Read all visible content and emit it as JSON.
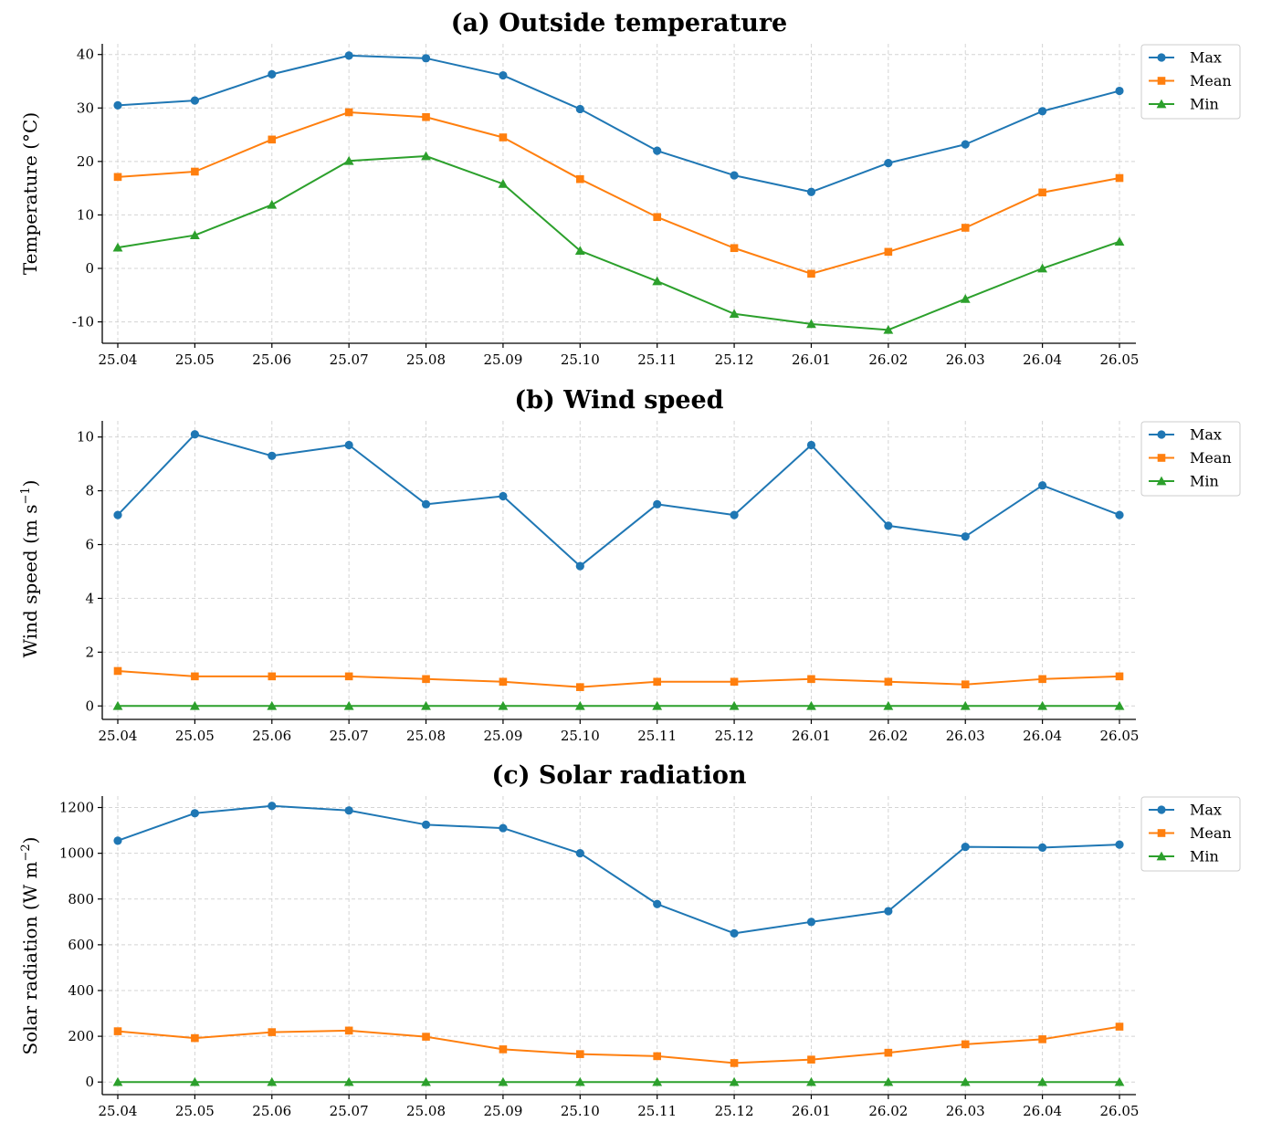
{
  "chart_data": [
    {
      "type": "line",
      "title": "(a) Outside temperature",
      "ylabel": "Temperature (°C)",
      "ylabel_sup": "",
      "ylabel_tail": "",
      "categories": [
        "25.04",
        "25.05",
        "25.06",
        "25.07",
        "25.08",
        "25.09",
        "25.10",
        "25.11",
        "25.12",
        "26.01",
        "26.02",
        "26.03",
        "26.04",
        "26.05"
      ],
      "ylim": [
        -14,
        42
      ],
      "yticks": [
        -10,
        0,
        10,
        20,
        30,
        40
      ],
      "grid": true,
      "legend": "upper-right-outside",
      "series": [
        {
          "name": "Max",
          "marker": "circle",
          "color": "#1f77b4",
          "values": [
            30.5,
            31.4,
            36.3,
            39.8,
            39.3,
            36.1,
            29.8,
            22.0,
            17.4,
            14.3,
            19.7,
            23.2,
            29.4,
            33.2
          ]
        },
        {
          "name": "Mean",
          "marker": "square",
          "color": "#ff7f0e",
          "values": [
            17.1,
            18.1,
            24.1,
            29.2,
            28.3,
            24.5,
            16.7,
            9.6,
            3.8,
            -1.0,
            3.1,
            7.6,
            14.2,
            16.9
          ]
        },
        {
          "name": "Min",
          "marker": "triangle",
          "color": "#2ca02c",
          "values": [
            3.9,
            6.2,
            11.9,
            20.1,
            21.0,
            15.8,
            3.3,
            -2.4,
            -8.5,
            -10.4,
            -11.5,
            -5.7,
            0.0,
            5.0
          ]
        }
      ]
    },
    {
      "type": "line",
      "title": "(b) Wind speed",
      "ylabel": "Wind speed (m s",
      "ylabel_sup": "−1",
      "ylabel_tail": ")",
      "categories": [
        "25.04",
        "25.05",
        "25.06",
        "25.07",
        "25.08",
        "25.09",
        "25.10",
        "25.11",
        "25.12",
        "26.01",
        "26.02",
        "26.03",
        "26.04",
        "26.05"
      ],
      "ylim": [
        -0.5,
        10.6
      ],
      "yticks": [
        0,
        2,
        4,
        6,
        8,
        10
      ],
      "grid": true,
      "legend": "upper-right-outside",
      "series": [
        {
          "name": "Max",
          "marker": "circle",
          "color": "#1f77b4",
          "values": [
            7.1,
            10.1,
            9.3,
            9.7,
            7.5,
            7.8,
            5.2,
            7.5,
            7.1,
            9.7,
            6.7,
            6.3,
            8.2,
            7.1
          ]
        },
        {
          "name": "Mean",
          "marker": "square",
          "color": "#ff7f0e",
          "values": [
            1.3,
            1.1,
            1.1,
            1.1,
            1.0,
            0.9,
            0.7,
            0.9,
            0.9,
            1.0,
            0.9,
            0.8,
            1.0,
            1.1
          ]
        },
        {
          "name": "Min",
          "marker": "triangle",
          "color": "#2ca02c",
          "values": [
            0,
            0,
            0,
            0,
            0,
            0,
            0,
            0,
            0,
            0,
            0,
            0,
            0,
            0
          ]
        }
      ]
    },
    {
      "type": "line",
      "title": "(c) Solar radiation",
      "ylabel": "Solar radiation (W m",
      "ylabel_sup": "−2",
      "ylabel_tail": ")",
      "categories": [
        "25.04",
        "25.05",
        "25.06",
        "25.07",
        "25.08",
        "25.09",
        "25.10",
        "25.11",
        "25.12",
        "26.01",
        "26.02",
        "26.03",
        "26.04",
        "26.05"
      ],
      "ylim": [
        -55,
        1250
      ],
      "yticks": [
        0,
        200,
        400,
        600,
        800,
        1000,
        1200
      ],
      "grid": true,
      "legend": "upper-right-outside",
      "series": [
        {
          "name": "Max",
          "marker": "circle",
          "color": "#1f77b4",
          "values": [
            1055,
            1175,
            1207,
            1187,
            1125,
            1110,
            1000,
            778,
            650,
            700,
            747,
            1028,
            1025,
            1038
          ]
        },
        {
          "name": "Mean",
          "marker": "square",
          "color": "#ff7f0e",
          "values": [
            222,
            192,
            218,
            225,
            198,
            143,
            122,
            113,
            83,
            98,
            128,
            165,
            187,
            242
          ]
        },
        {
          "name": "Min",
          "marker": "triangle",
          "color": "#2ca02c",
          "values": [
            0,
            0,
            0,
            0,
            0,
            0,
            0,
            0,
            0,
            0,
            0,
            0,
            0,
            0
          ]
        }
      ]
    }
  ]
}
